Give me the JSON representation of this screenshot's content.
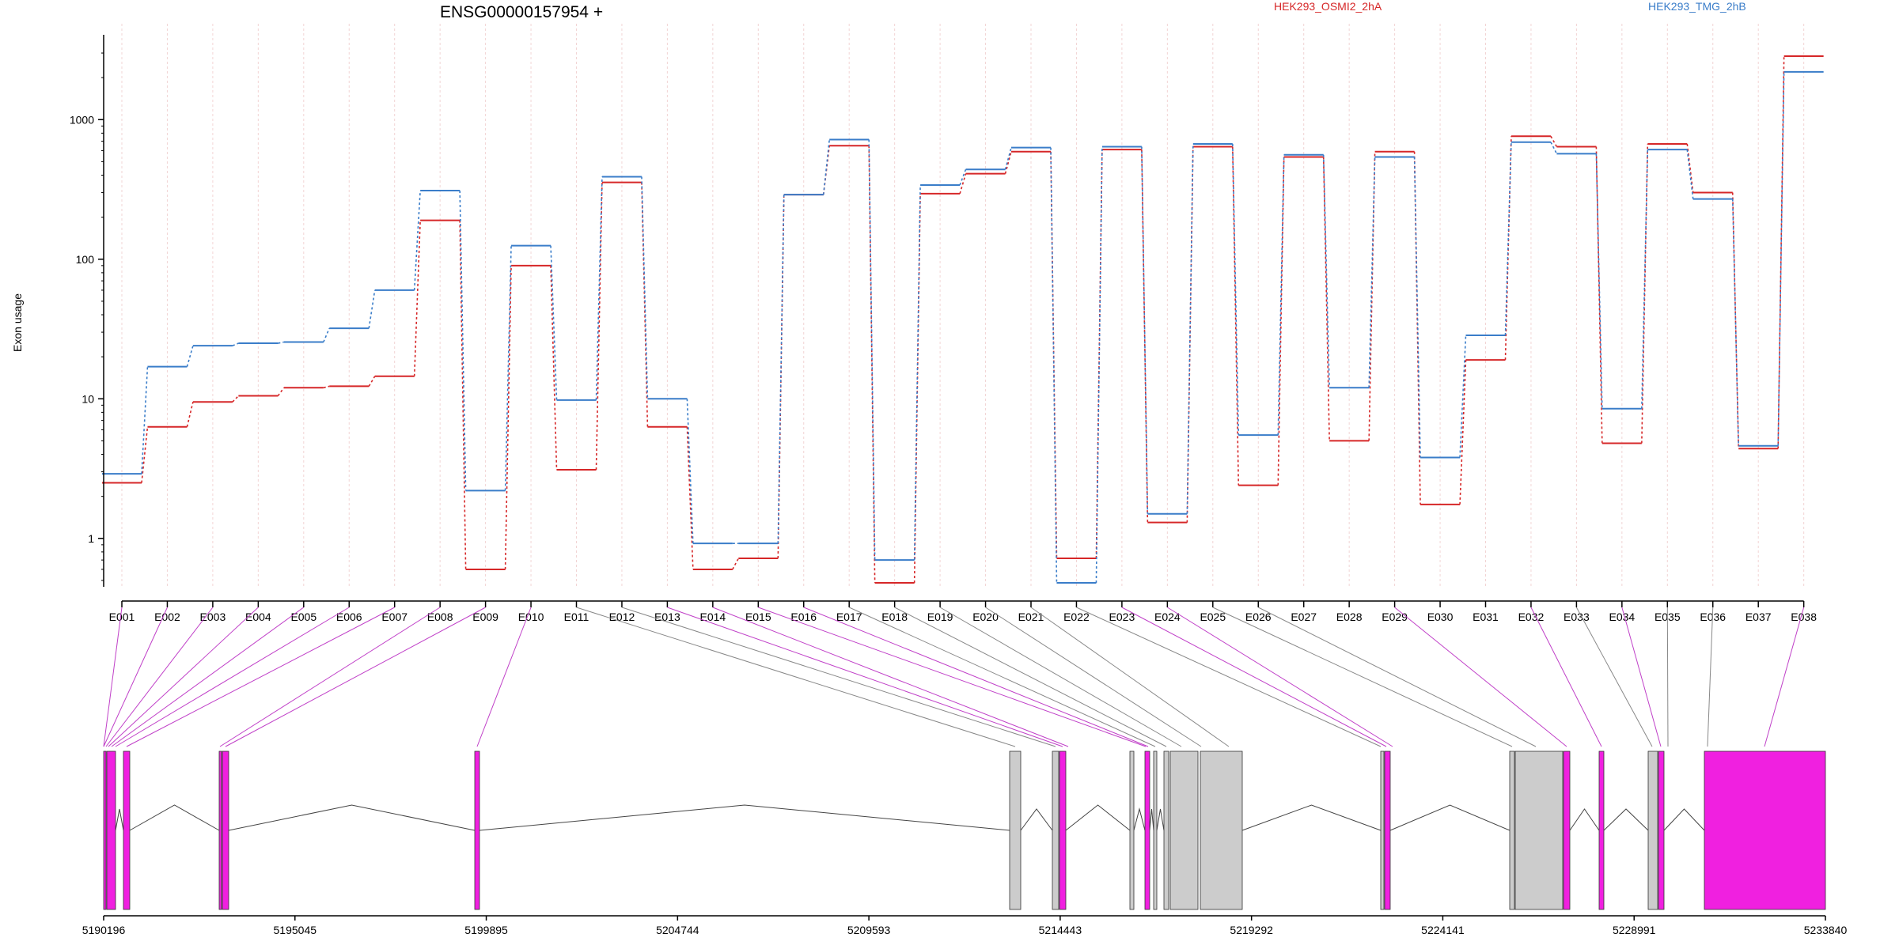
{
  "chart_data": {
    "type": "line",
    "title": "ENSG00000157954 +",
    "ylabel": "Exon usage",
    "xlabel": "",
    "y_scale": "log",
    "y_ticks": [
      1,
      10,
      100,
      1000
    ],
    "y_tick_labels": [
      "1",
      "10",
      "100",
      "1000"
    ],
    "ylim": [
      0.45,
      4000
    ],
    "legend_placement": "top",
    "grid": "vertical lines at exon ticks",
    "categories": [
      "E001",
      "E002",
      "E003",
      "E004",
      "E005",
      "E006",
      "E007",
      "E008",
      "E009",
      "E010",
      "E011",
      "E012",
      "E013",
      "E014",
      "E015",
      "E016",
      "E017",
      "E018",
      "E019",
      "E020",
      "E021",
      "E022",
      "E023",
      "E024",
      "E025",
      "E026",
      "E027",
      "E028",
      "E029",
      "E030",
      "E031",
      "E032",
      "E033",
      "E034",
      "E035",
      "E036",
      "E037",
      "E038"
    ],
    "series": [
      {
        "name": "HEK293_OSMI2_2hA",
        "color": "#d62728",
        "values": [
          2.5,
          6.3,
          9.5,
          10.5,
          12,
          12.3,
          14.5,
          190,
          0.6,
          90,
          3.1,
          355,
          6.3,
          0.6,
          0.72,
          290,
          650,
          0.48,
          295,
          410,
          590,
          0.72,
          610,
          1.3,
          640,
          2.4,
          540,
          5,
          590,
          1.75,
          19,
          760,
          640,
          4.8,
          670,
          300,
          4.4,
          2850
        ]
      },
      {
        "name": "HEK293_TMG_2hB",
        "color": "#3a7dc9",
        "values": [
          2.9,
          17,
          24,
          25,
          25.5,
          32,
          60,
          310,
          2.2,
          125,
          9.8,
          390,
          10,
          0.92,
          0.92,
          290,
          720,
          0.7,
          340,
          440,
          630,
          0.48,
          640,
          1.5,
          670,
          5.5,
          560,
          12,
          540,
          3.8,
          28.5,
          690,
          570,
          8.5,
          610,
          270,
          4.6,
          2200
        ]
      }
    ],
    "gene_model": {
      "axis_ticks": [
        "5190196",
        "5195045",
        "5199895",
        "5204744",
        "5209593",
        "5214443",
        "5219292",
        "5224141",
        "5228991",
        "5233840"
      ],
      "colors": {
        "highlighted_exon": "#f020e0",
        "exon": "#cccccc",
        "intron": "#444444",
        "grey_connector": "#888888",
        "magenta_connector": "#c040c8"
      }
    }
  }
}
